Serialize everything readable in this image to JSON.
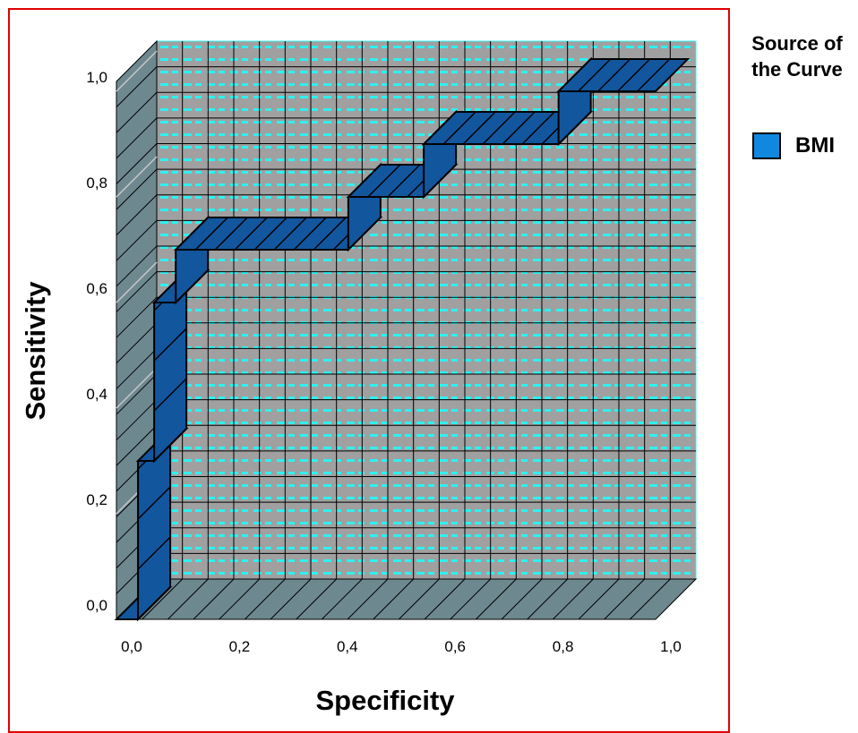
{
  "chart_data": {
    "type": "line",
    "step": true,
    "projection": "3d",
    "title": "",
    "xlabel": "Specificity",
    "ylabel": "Sensitivity",
    "xlim": [
      0,
      1
    ],
    "ylim": [
      0,
      1
    ],
    "x_ticks": [
      "0,0",
      "0,2",
      "0,4",
      "0,6",
      "0,8",
      "1,0"
    ],
    "y_ticks": [
      "0,0",
      "0,2",
      "0,4",
      "0,6",
      "0,8",
      "1,0"
    ],
    "grid": true,
    "legend_title": "Source of the Curve",
    "legend_placement": "top-right",
    "series": [
      {
        "name": "BMI",
        "color": "#12569e",
        "points": [
          {
            "x": 0.0,
            "y": 0.0
          },
          {
            "x": 0.04,
            "y": 0.0
          },
          {
            "x": 0.04,
            "y": 0.3
          },
          {
            "x": 0.07,
            "y": 0.3
          },
          {
            "x": 0.07,
            "y": 0.6
          },
          {
            "x": 0.11,
            "y": 0.6
          },
          {
            "x": 0.11,
            "y": 0.7
          },
          {
            "x": 0.43,
            "y": 0.7
          },
          {
            "x": 0.43,
            "y": 0.8
          },
          {
            "x": 0.57,
            "y": 0.8
          },
          {
            "x": 0.57,
            "y": 0.9
          },
          {
            "x": 0.82,
            "y": 0.9
          },
          {
            "x": 0.82,
            "y": 1.0
          },
          {
            "x": 1.0,
            "y": 1.0
          }
        ]
      }
    ]
  },
  "legend": {
    "title": "Source of the Curve",
    "swatch_color": "#1188e0",
    "label": "BMI"
  },
  "colors": {
    "frame": "#e00000",
    "back_wall": "#a0a0a0",
    "back_wall_dash": "#2ff0f0",
    "side_wall": "#6e8890",
    "grid_line": "#000000"
  }
}
